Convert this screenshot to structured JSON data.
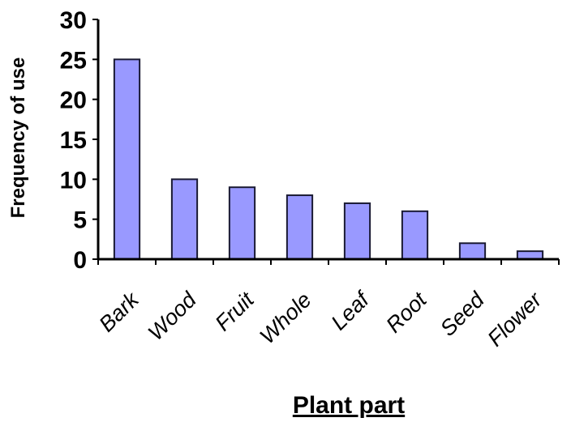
{
  "chart_data": {
    "type": "bar",
    "title": "",
    "xlabel": "Plant part",
    "ylabel": "Frequency of use",
    "categories": [
      "Bark",
      "Wood",
      "Fruit",
      "Whole",
      "Leaf",
      "Root",
      "Seed",
      "Flower"
    ],
    "values": [
      25,
      10,
      9,
      8,
      7,
      6,
      2,
      1
    ],
    "ylim": [
      0,
      30
    ],
    "yticks": [
      "0",
      "5",
      "10",
      "15",
      "20",
      "25",
      "30"
    ],
    "grid": false,
    "legend": "none",
    "colors": {
      "bar_fill": "#9999ff",
      "bar_stroke": "#1a1a33",
      "axis": "#000000"
    }
  }
}
